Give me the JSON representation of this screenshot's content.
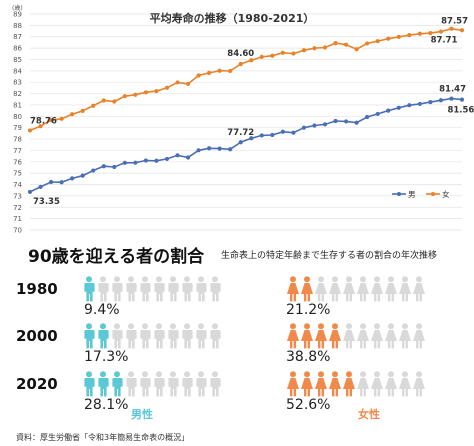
{
  "chart_data": {
    "type": "line",
    "title": "平均寿命の推移（1980-2021）",
    "ylabel": "(歳)",
    "ylim": [
      70,
      89
    ],
    "yticks": [
      70,
      71,
      72,
      73,
      74,
      75,
      76,
      77,
      78,
      79,
      80,
      81,
      82,
      83,
      84,
      85,
      86,
      87,
      88,
      89
    ],
    "grid": true,
    "legend_position": "bottom-right",
    "x": [
      1980,
      1981,
      1982,
      1983,
      1984,
      1985,
      1986,
      1987,
      1988,
      1989,
      1990,
      1991,
      1992,
      1993,
      1994,
      1995,
      1996,
      1997,
      1998,
      1999,
      2000,
      2001,
      2002,
      2003,
      2004,
      2005,
      2006,
      2007,
      2008,
      2009,
      2010,
      2011,
      2012,
      2013,
      2014,
      2015,
      2016,
      2017,
      2018,
      2019,
      2020,
      2021
    ],
    "series": [
      {
        "name": "男",
        "color": "#4a6fb5",
        "values": [
          73.35,
          73.79,
          74.22,
          74.2,
          74.54,
          74.78,
          75.23,
          75.61,
          75.54,
          75.91,
          75.92,
          76.11,
          76.09,
          76.25,
          76.57,
          76.38,
          77.01,
          77.19,
          77.16,
          77.1,
          77.72,
          78.07,
          78.32,
          78.36,
          78.64,
          78.56,
          79.0,
          79.19,
          79.29,
          79.59,
          79.55,
          79.44,
          79.94,
          80.21,
          80.5,
          80.75,
          80.98,
          81.09,
          81.25,
          81.41,
          81.56,
          81.47
        ]
      },
      {
        "name": "女",
        "color": "#e8832a",
        "values": [
          78.76,
          79.13,
          79.66,
          79.78,
          80.18,
          80.48,
          80.93,
          81.39,
          81.3,
          81.77,
          81.9,
          82.11,
          82.22,
          82.51,
          82.98,
          82.85,
          83.59,
          83.82,
          84.01,
          83.99,
          84.6,
          84.93,
          85.23,
          85.33,
          85.59,
          85.52,
          85.81,
          85.99,
          86.05,
          86.44,
          86.3,
          85.9,
          86.41,
          86.61,
          86.83,
          86.99,
          87.14,
          87.26,
          87.32,
          87.45,
          87.71,
          87.57
        ]
      }
    ],
    "annotations": [
      {
        "series": "男",
        "x": 1980,
        "text": "73.35"
      },
      {
        "series": "男",
        "x": 2000,
        "text": "77.72"
      },
      {
        "series": "男",
        "x": 2020,
        "text": "81.56"
      },
      {
        "series": "男",
        "x": 2021,
        "text": "81.47"
      },
      {
        "series": "女",
        "x": 1980,
        "text": "78.76"
      },
      {
        "series": "女",
        "x": 2000,
        "text": "84.60"
      },
      {
        "series": "女",
        "x": 2020,
        "text": "87.71"
      },
      {
        "series": "女",
        "x": 2021,
        "text": "87.57"
      }
    ]
  },
  "survival": {
    "title": "90歳を迎える者の割合",
    "subtitle": "生命表上の特定年齢まで生存する者の割合の年次推移",
    "male_label": "男性",
    "female_label": "女性",
    "male_color": "#5bc8d6",
    "female_color": "#f08a4b",
    "inactive_color": "#d9d9d9",
    "rows": [
      {
        "year": "1980",
        "male_pct": "9.4%",
        "female_pct": "21.2%",
        "male_filled": 1,
        "female_filled": 2
      },
      {
        "year": "2000",
        "male_pct": "17.3%",
        "female_pct": "38.8%",
        "male_filled": 2,
        "female_filled": 4
      },
      {
        "year": "2020",
        "male_pct": "28.1%",
        "female_pct": "52.6%",
        "male_filled": 3,
        "female_filled": 5
      }
    ],
    "icons_per_row": 10
  },
  "source": "資料：厚生労働省「令和3年簡易生命表の概況」"
}
